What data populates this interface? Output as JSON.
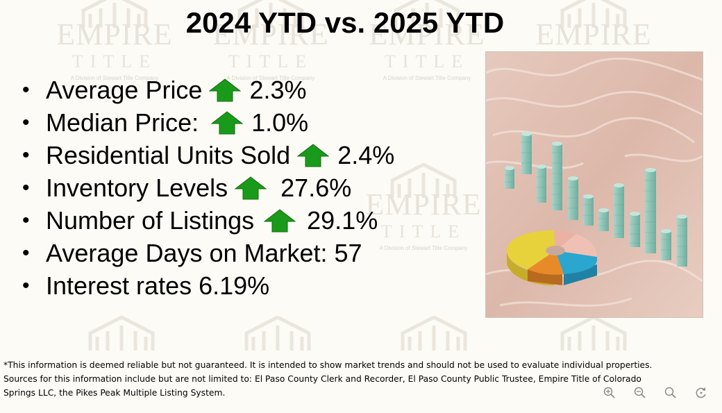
{
  "slide": {
    "title": "2024 YTD vs. 2025 YTD",
    "bullets": [
      {
        "label": "Average Price",
        "has_up_arrow": true,
        "value": "2.3%"
      },
      {
        "label": "Median Price:",
        "has_up_arrow": true,
        "value": "1.0%"
      },
      {
        "label": "Residential Units Sold",
        "has_up_arrow": true,
        "value": "2.4%"
      },
      {
        "label": "Inventory Levels",
        "has_up_arrow": true,
        "value": "27.6%"
      },
      {
        "label": "Number of Listings",
        "has_up_arrow": true,
        "value": "29.1%"
      },
      {
        "label": "Average Days on Market: 57",
        "has_up_arrow": false,
        "value": ""
      },
      {
        "label": "Interest rates 6.19%",
        "has_up_arrow": false,
        "value": ""
      }
    ],
    "bullet_glyph": "•",
    "image_subject": "3D bar chart and pie chart on pink surface",
    "disclaimer_line1": "*This information is deemed reliable but not guaranteed.  It is intended to show market trends and should not be used to evaluate individual properties.",
    "disclaimer_line2": "Sources for this information include but are not limited to: El Paso County Clerk and Recorder, El Paso County Public Trustee, Empire Title of Colorado",
    "disclaimer_line3": "Springs LLC, the Pikes Peak Multiple Listing System."
  },
  "watermark": {
    "word1": "EMPIRE",
    "word2": "TITLE",
    "sub": "A Division of Stewart Title Company"
  },
  "zoom_controls": [
    "zoom-in-icon",
    "zoom-out-icon",
    "search-icon",
    "rotate-icon"
  ],
  "colors": {
    "arrow_green": "#1a9a1a",
    "background": "#fcfbf6",
    "photo_bg": "#e3c3b6",
    "bar_teal": "#8ec5b8",
    "pie_yellow": "#e8d23c",
    "pie_orange": "#e88a2a",
    "pie_blue": "#2aa6cf",
    "pie_pink": "#f0c0b4"
  }
}
